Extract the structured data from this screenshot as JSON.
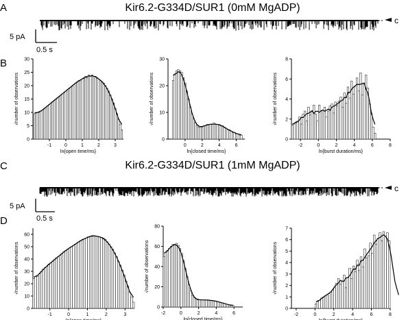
{
  "panel_labels": [
    "A",
    "B",
    "C",
    "D"
  ],
  "trace_top": {
    "title": "Kir6.2-G334D/SUR1 (0mM MgADP)",
    "closed_label": "c",
    "scale_y": "5 pA",
    "scale_x": "0.5 s"
  },
  "trace_bottom": {
    "title": "Kir6.2-G334D/SUR1 (1mM MgADP)",
    "closed_label": "c",
    "scale_y": "5 pA",
    "scale_x": "0.5 s"
  },
  "chart_data": [
    {
      "type": "bar",
      "id": "B1",
      "title": "",
      "xlabel": "ln{open time/ms}",
      "ylabel": "√number of observations",
      "xlim": [
        -2.0,
        3.5
      ],
      "ylim": [
        0,
        30
      ],
      "xticks": [
        -1,
        0,
        1,
        2,
        3
      ],
      "yticks": [
        0,
        5,
        10,
        15,
        20,
        25,
        30
      ],
      "x_start": -1.9,
      "x_step": 0.1,
      "values": [
        9.5,
        10,
        10,
        10,
        10.5,
        11,
        11.5,
        12,
        12.5,
        13,
        13.5,
        14,
        14.5,
        15,
        15.5,
        16,
        16.5,
        17,
        17.5,
        18,
        18.5,
        19,
        19.5,
        20,
        20.5,
        21,
        21.5,
        22,
        22,
        22.5,
        23,
        23.5,
        23,
        24,
        23.5,
        24,
        23.5,
        23.5,
        23,
        22.5,
        22,
        21.5,
        21,
        20,
        19,
        18,
        16.5,
        15,
        13.5,
        11.5,
        9.5,
        7.5,
        5.5,
        3.5
      ]
    },
    {
      "type": "bar",
      "id": "B2",
      "title": "",
      "xlabel": "ln{closed time/ms}",
      "ylabel": "√number of observations",
      "xlim": [
        -2.0,
        7.0
      ],
      "ylim": [
        0,
        30
      ],
      "xticks": [
        0,
        2,
        4,
        6
      ],
      "yticks": [
        0,
        10,
        20,
        30
      ],
      "x_start": -1.4,
      "x_step": 0.2,
      "values": [
        22,
        24,
        25.5,
        26,
        25.5,
        25,
        23,
        21,
        18,
        15,
        12,
        9.5,
        7.5,
        6,
        5,
        4.5,
        4.5,
        4.5,
        5,
        5,
        5.5,
        5.5,
        5.5,
        5.5,
        6,
        5.5,
        5.5,
        5.5,
        5,
        5,
        4.5,
        4,
        3.5,
        3.5,
        3,
        2.5,
        2.5,
        2,
        2,
        1.5,
        1.5
      ]
    },
    {
      "type": "bar",
      "id": "B3",
      "title": "",
      "xlabel": "ln{burst duration/ms}",
      "ylabel": "√number of observations",
      "xlim": [
        -3.0,
        8.0
      ],
      "ylim": [
        0,
        8
      ],
      "xticks": [
        -2,
        0,
        2,
        4,
        6,
        8
      ],
      "yticks": [
        0,
        2,
        4,
        6,
        8
      ],
      "x_start": -2.9,
      "x_step": 0.2,
      "values": [
        1.4,
        1.5,
        1.6,
        1.8,
        2.2,
        1.5,
        2.5,
        2.8,
        1.8,
        3.2,
        2.4,
        2.7,
        3.4,
        2.5,
        1.8,
        3.4,
        2.8,
        2.9,
        3.2,
        2.2,
        2.8,
        3.3,
        3.5,
        2.6,
        3.7,
        3.3,
        3.8,
        4.2,
        3.2,
        4.6,
        3.6,
        5.2,
        4.1,
        5.8,
        4.5,
        5.3,
        6.1,
        4.8,
        6.6,
        4.4,
        5.5,
        6.4,
        5.1,
        3.5,
        2.6,
        1.2,
        0.6
      ]
    },
    {
      "type": "bar",
      "id": "D1",
      "title": "",
      "xlabel": "ln{open time/ms}",
      "ylabel": "√number of observations",
      "xlim": [
        -1.9,
        3.5
      ],
      "ylim": [
        0,
        65
      ],
      "xticks": [
        -1,
        0,
        1,
        2,
        3
      ],
      "yticks": [
        0,
        10,
        20,
        30,
        40,
        50,
        60
      ],
      "x_start": -1.85,
      "x_step": 0.1,
      "values": [
        24,
        26,
        26,
        28,
        30,
        32,
        33,
        34,
        36,
        37,
        38,
        39.5,
        41,
        42,
        43,
        44.5,
        46,
        47,
        48,
        49,
        50,
        51,
        52,
        53,
        54,
        55,
        56,
        56.5,
        57,
        58,
        58.5,
        59,
        59,
        58.5,
        58.5,
        58,
        57.5,
        57,
        56,
        54,
        52,
        50,
        48,
        45,
        42,
        38,
        35,
        31,
        27,
        22,
        18,
        13,
        9,
        5
      ]
    },
    {
      "type": "bar",
      "id": "D2",
      "title": "",
      "xlabel": "ln{closed time/ms}",
      "ylabel": "√number of observations",
      "xlim": [
        -2.0,
        7.0
      ],
      "ylim": [
        0,
        80
      ],
      "xticks": [
        -2,
        0,
        2,
        4,
        6
      ],
      "yticks": [
        0,
        20,
        40,
        60,
        80
      ],
      "x_start": -1.9,
      "x_step": 0.2,
      "values": [
        50,
        54,
        56,
        58,
        60,
        62,
        62,
        63,
        61,
        58,
        53,
        46,
        38,
        30,
        22,
        16,
        11,
        9,
        8,
        7,
        7,
        7,
        7,
        7,
        7,
        7,
        6.5,
        6.5,
        6,
        6,
        5.5,
        5,
        4.5,
        4,
        3.5,
        3,
        2.5,
        2,
        1.5,
        1.5
      ]
    },
    {
      "type": "bar",
      "id": "D3",
      "title": "",
      "xlabel": "ln{burst duration/ms}",
      "ylabel": "√number of observations",
      "xlim": [
        -2.5,
        8.0
      ],
      "ylim": [
        0,
        7
      ],
      "xticks": [
        -2,
        0,
        2,
        4,
        6,
        8
      ],
      "yticks": [
        0,
        1,
        2,
        3,
        4,
        5,
        6,
        7
      ],
      "x_start": 0.1,
      "x_step": 0.2,
      "values": [
        0.4,
        0.6,
        0.7,
        0.9,
        1,
        1.1,
        1.2,
        1.3,
        1.4,
        1.6,
        1.8,
        2.2,
        2.6,
        2.1,
        2.4,
        2.9,
        1.8,
        2.7,
        3.5,
        2.6,
        3.7,
        3.2,
        4.2,
        3.3,
        4.5,
        3.6,
        5.2,
        4.4,
        4.6,
        5.7,
        4.8,
        6.4,
        5.6,
        6.1,
        6.6,
        5.9,
        6.7,
        6.3,
        6.6,
        5.9,
        4.8,
        3.4,
        2.1,
        1.0,
        0.4
      ]
    }
  ]
}
